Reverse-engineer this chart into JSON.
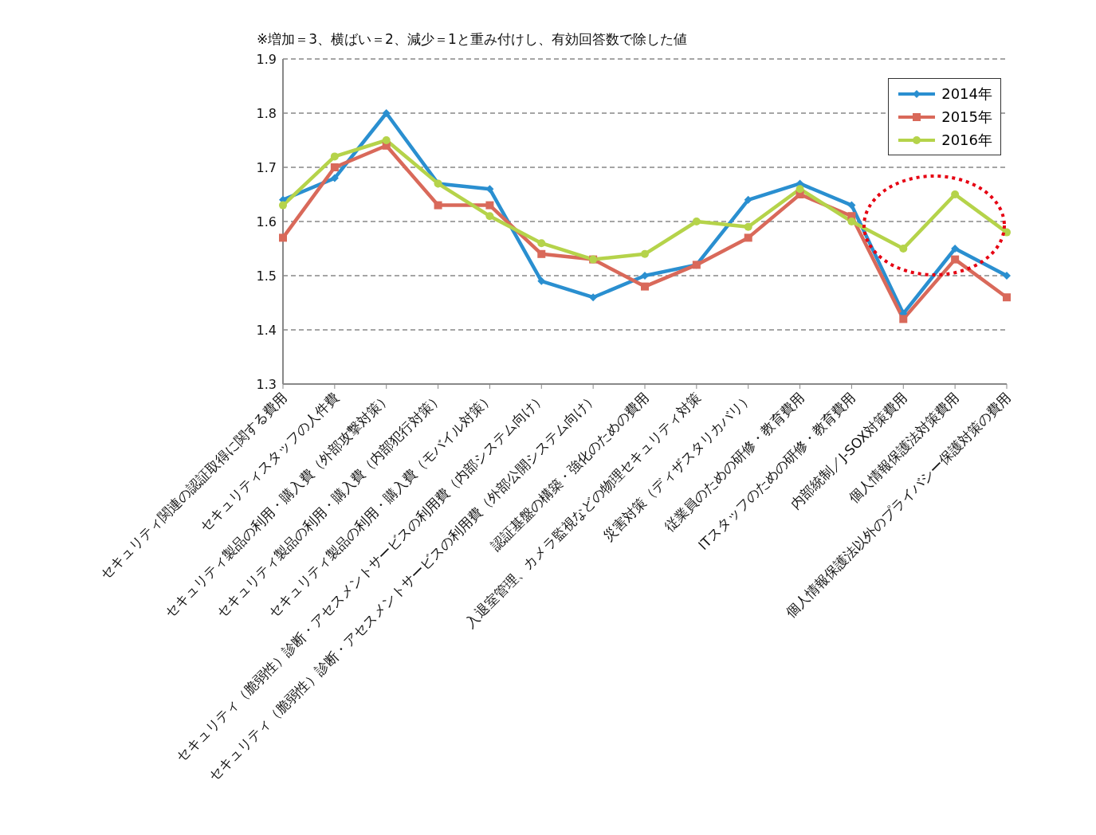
{
  "chart_data": {
    "type": "line",
    "annotations": [
      "※増加＝3、横ばい＝2、減少＝1と重み付けし、有効回答数で除した値"
    ],
    "categories": [
      "セキュリティ関連の認証取得に関する費用",
      "セキュリティスタッフの人件費",
      "セキュリティ製品の利用・購入費（外部攻撃対策）",
      "セキュリティ製品の利用・購入費（内部犯行対策）",
      "セキュリティ製品の利用・購入費（モバイル対策）",
      "セキュリティ（脆弱性）診断・アセスメントサービスの利用費（内部システム向け）",
      "セキュリティ（脆弱性）診断・アセスメントサービスの利用費（外部公開システム向け）",
      "認証基盤の構築・強化のための費用",
      "入退室管理、カメラ監視などの物理セキュリティ対策",
      "災害対策（ディザスタリカバリ）",
      "従業員のための研修・教育費用",
      "ITスタッフのための研修・教育費用",
      "内部統制／J-SOX対策費用",
      "個人情報保護法対策費用",
      "個人情報保護法以外のプライバシー保護対策の費用"
    ],
    "series": [
      {
        "name": "2014年",
        "color": "#2a8fd0",
        "marker": "diamond",
        "values": [
          1.64,
          1.68,
          1.8,
          1.67,
          1.66,
          1.49,
          1.46,
          1.5,
          1.52,
          1.64,
          1.67,
          1.63,
          1.43,
          1.55,
          1.5
        ]
      },
      {
        "name": "2015年",
        "color": "#d9695a",
        "marker": "square",
        "values": [
          1.57,
          1.7,
          1.74,
          1.63,
          1.63,
          1.54,
          1.53,
          1.48,
          1.52,
          1.57,
          1.65,
          1.61,
          1.42,
          1.53,
          1.46
        ]
      },
      {
        "name": "2016年",
        "color": "#b5d34a",
        "marker": "circle",
        "values": [
          1.63,
          1.72,
          1.75,
          1.67,
          1.61,
          1.56,
          1.53,
          1.54,
          1.6,
          1.59,
          1.66,
          1.6,
          1.55,
          1.65,
          1.58
        ]
      }
    ],
    "ylim": [
      1.3,
      1.9
    ],
    "yticks": [
      1.3,
      1.4,
      1.5,
      1.6,
      1.7,
      1.8,
      1.9
    ],
    "grid": "y",
    "legend": "top right",
    "line_style": "solid"
  }
}
